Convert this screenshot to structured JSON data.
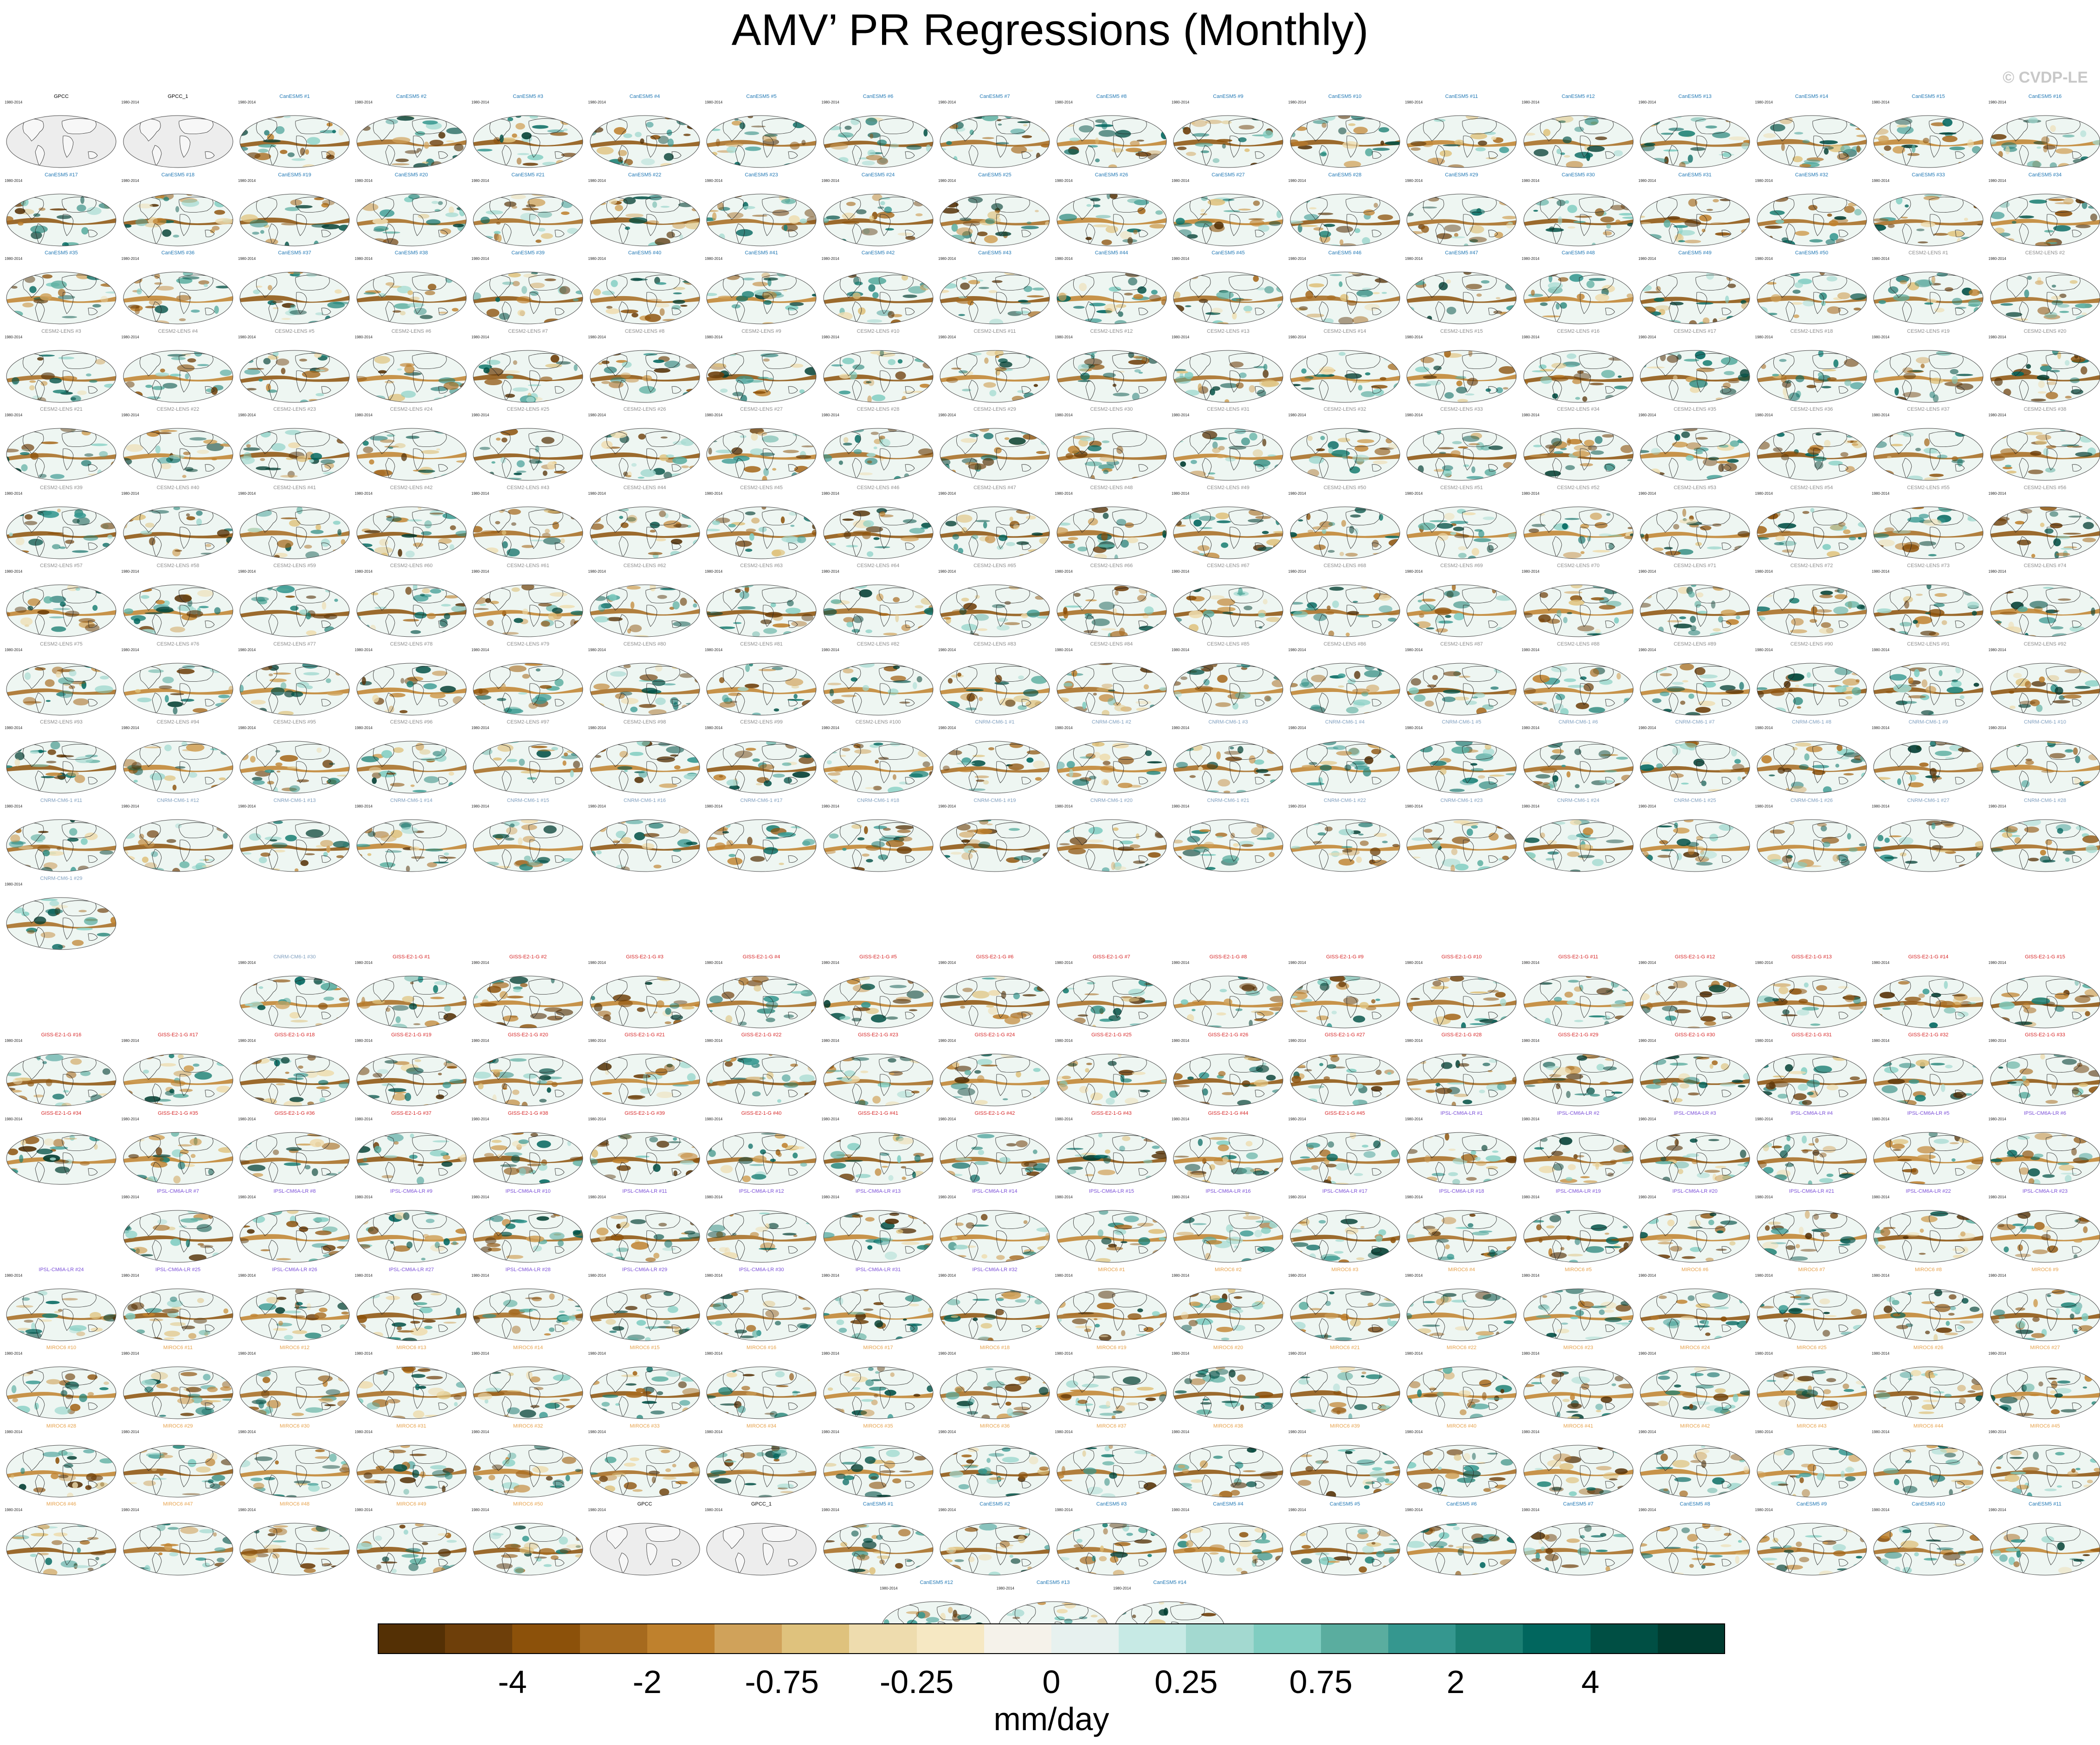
{
  "title": "AMV’ PR Regressions (Monthly)",
  "credit": "© CVDP-LE",
  "map_panels": {
    "projection": "Robinson",
    "region": "global",
    "variable": "precipitation regression onto AMV",
    "rows": [
      {
        "count": 18,
        "offset": 0
      },
      {
        "count": 18,
        "offset": 0
      },
      {
        "count": 18,
        "offset": 0
      },
      {
        "count": 18,
        "offset": 0
      },
      {
        "count": 18,
        "offset": 0
      },
      {
        "count": 18,
        "offset": 0
      },
      {
        "count": 18,
        "offset": 0
      },
      {
        "count": 18,
        "offset": 0
      },
      {
        "count": 18,
        "offset": 0
      },
      {
        "count": 18,
        "offset": 0
      },
      {
        "count": 1,
        "offset": 0
      },
      {
        "count": 16,
        "offset": 2
      },
      {
        "count": 18,
        "offset": 0
      },
      {
        "count": 18,
        "offset": 0
      },
      {
        "count": 17,
        "offset": 1
      },
      {
        "count": 18,
        "offset": 0
      },
      {
        "count": 18,
        "offset": 0
      },
      {
        "count": 18,
        "offset": 0
      },
      {
        "count": 18,
        "offset": 0
      },
      {
        "count": 3,
        "offset": 7.5
      }
    ],
    "observation_panels": [
      {
        "name": "GPCC",
        "years": "1980-2014",
        "color": "#000000"
      },
      {
        "name": "GPCC_1",
        "years": "1980-2014",
        "color": "#000000"
      }
    ],
    "ensembles": [
      {
        "name": "CanESM5",
        "color": "#1f77b4",
        "count": 50
      },
      {
        "name": "CESM2-LENS",
        "color": "#8c8c8c",
        "count": 100
      },
      {
        "name": "CNRM-CM6-1",
        "color": "#7f9fbf",
        "count": 30
      },
      {
        "name": "GISS-E2-1-G",
        "color": "#d62728",
        "count": 45
      },
      {
        "name": "IPSL-CM6A-LR",
        "color": "#7b4fd8",
        "count": 32
      },
      {
        "name": "MIROC6",
        "color": "#e6a14a",
        "count": 50
      }
    ]
  },
  "colorbar": {
    "units": "mm/day",
    "colors": [
      "#543005",
      "#6e3f0a",
      "#8c510a",
      "#a66a1e",
      "#bf812d",
      "#d0a25a",
      "#dfc27d",
      "#eedcae",
      "#f6e8c3",
      "#f5f2ea",
      "#e7f1ef",
      "#c7eae5",
      "#a3d9d0",
      "#80cdc1",
      "#5aad9f",
      "#35978f",
      "#1b7f73",
      "#01665e",
      "#004f44",
      "#003c30"
    ],
    "tick_labels": [
      {
        "label": "-4",
        "edge": 2
      },
      {
        "label": "-2",
        "edge": 4
      },
      {
        "label": "-0.75",
        "edge": 6
      },
      {
        "label": "-0.25",
        "edge": 8
      },
      {
        "label": "0",
        "edge": 10
      },
      {
        "label": "0.25",
        "edge": 12
      },
      {
        "label": "0.75",
        "edge": 14
      },
      {
        "label": "2",
        "edge": 16
      },
      {
        "label": "4",
        "edge": 18
      }
    ]
  }
}
